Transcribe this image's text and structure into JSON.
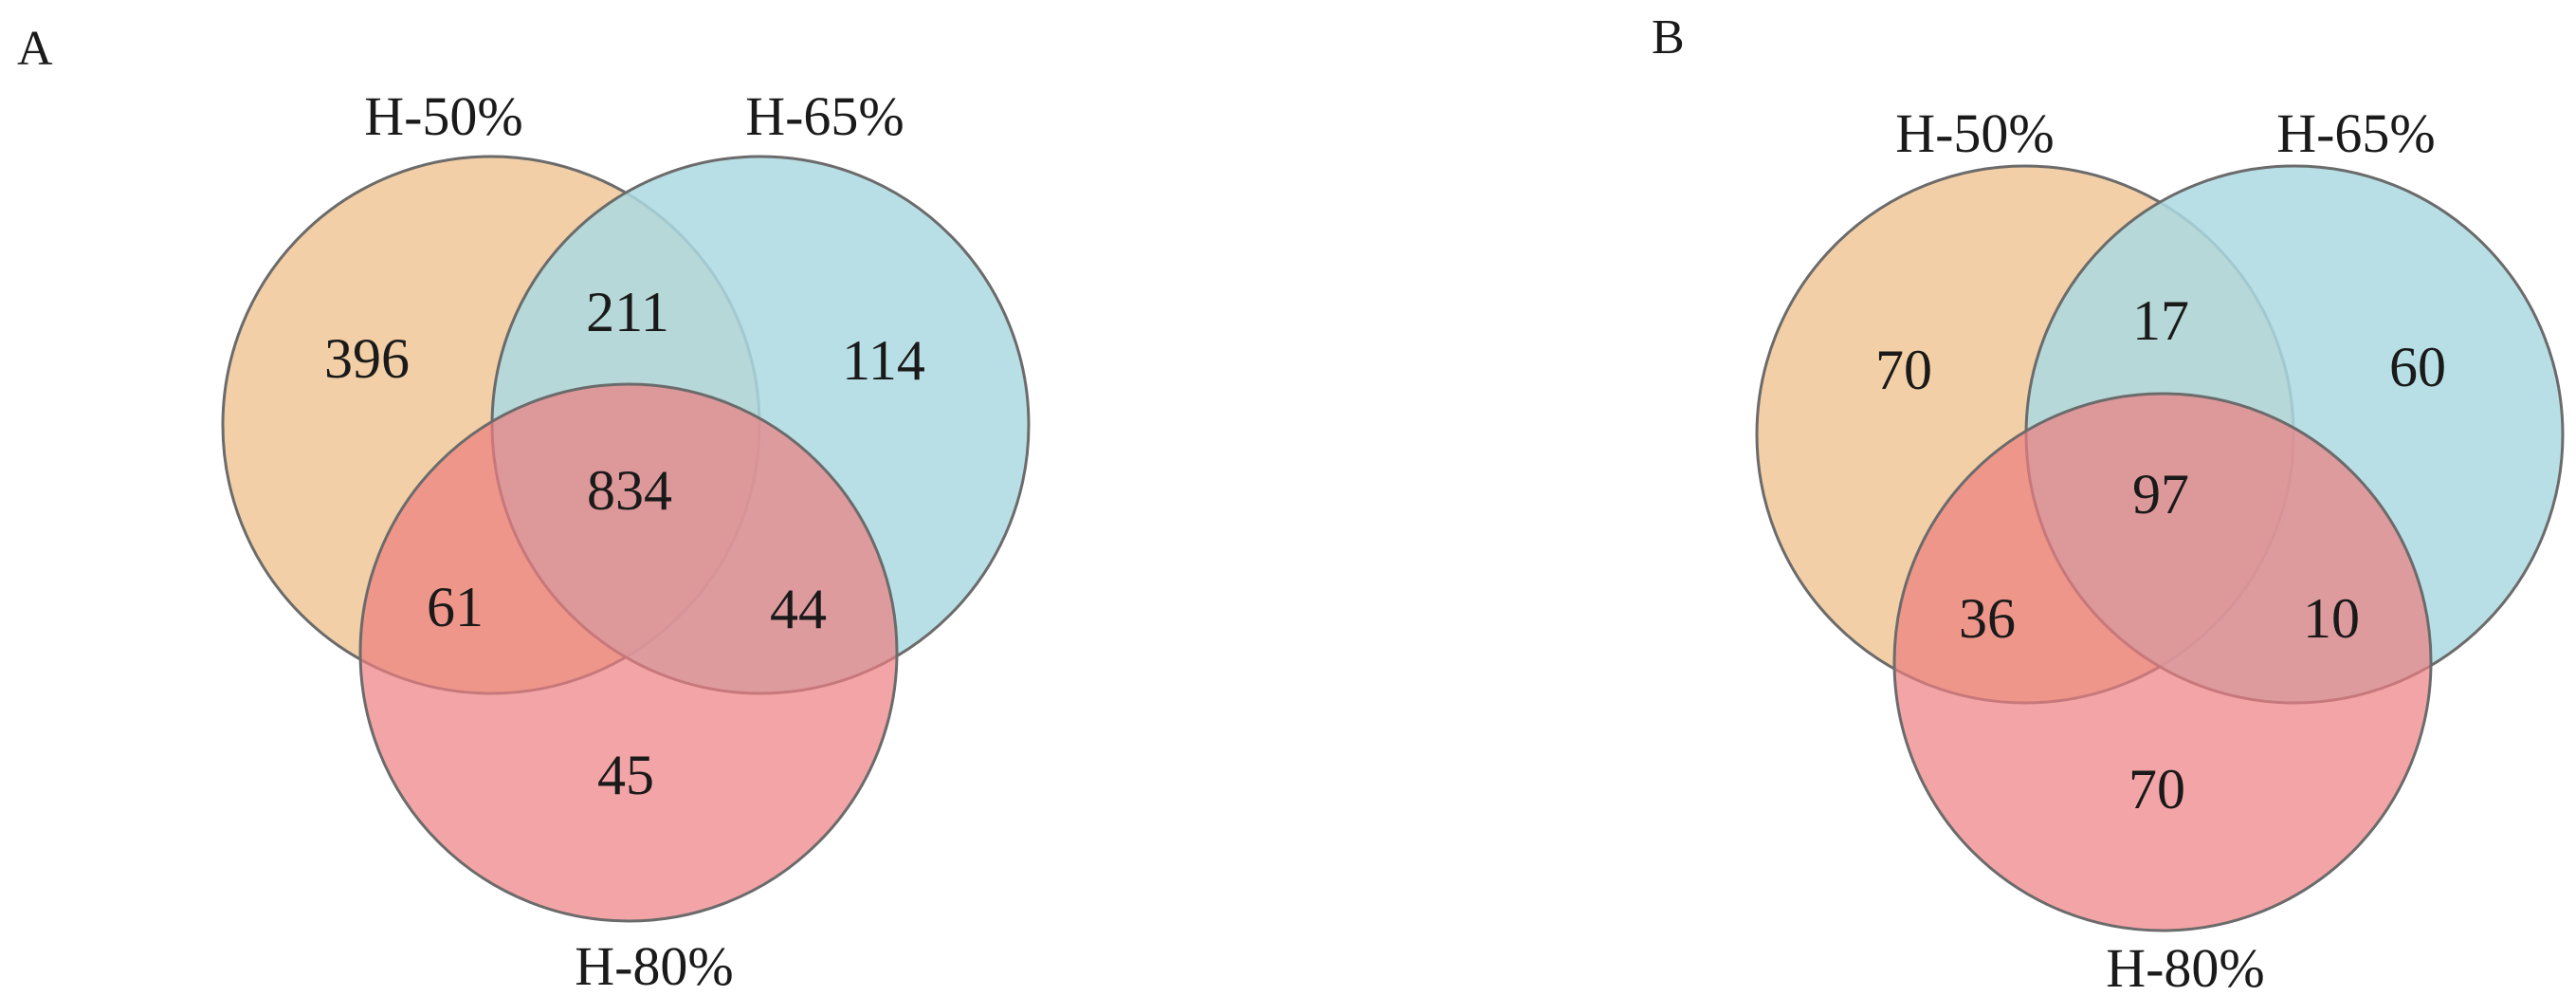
{
  "panels": [
    {
      "letter": "A",
      "sets": [
        {
          "name": "H-50%",
          "color": "#f0c797"
        },
        {
          "name": "H-65%",
          "color": "#abd9e0"
        },
        {
          "name": "H-80%",
          "color": "#ee7d80"
        }
      ],
      "regions": {
        "only_a": "396",
        "only_b": "114",
        "only_c": "45",
        "a_b": "211",
        "a_c": "61",
        "b_c": "44",
        "a_b_c": "834"
      }
    },
    {
      "letter": "B",
      "sets": [
        {
          "name": "H-50%",
          "color": "#f0c797"
        },
        {
          "name": "H-65%",
          "color": "#abd9e0"
        },
        {
          "name": "H-80%",
          "color": "#ee7d80"
        }
      ],
      "regions": {
        "only_a": "70",
        "only_b": "60",
        "only_c": "70",
        "a_b": "17",
        "a_c": "36",
        "b_c": "10",
        "a_b_c": "97"
      }
    }
  ]
}
